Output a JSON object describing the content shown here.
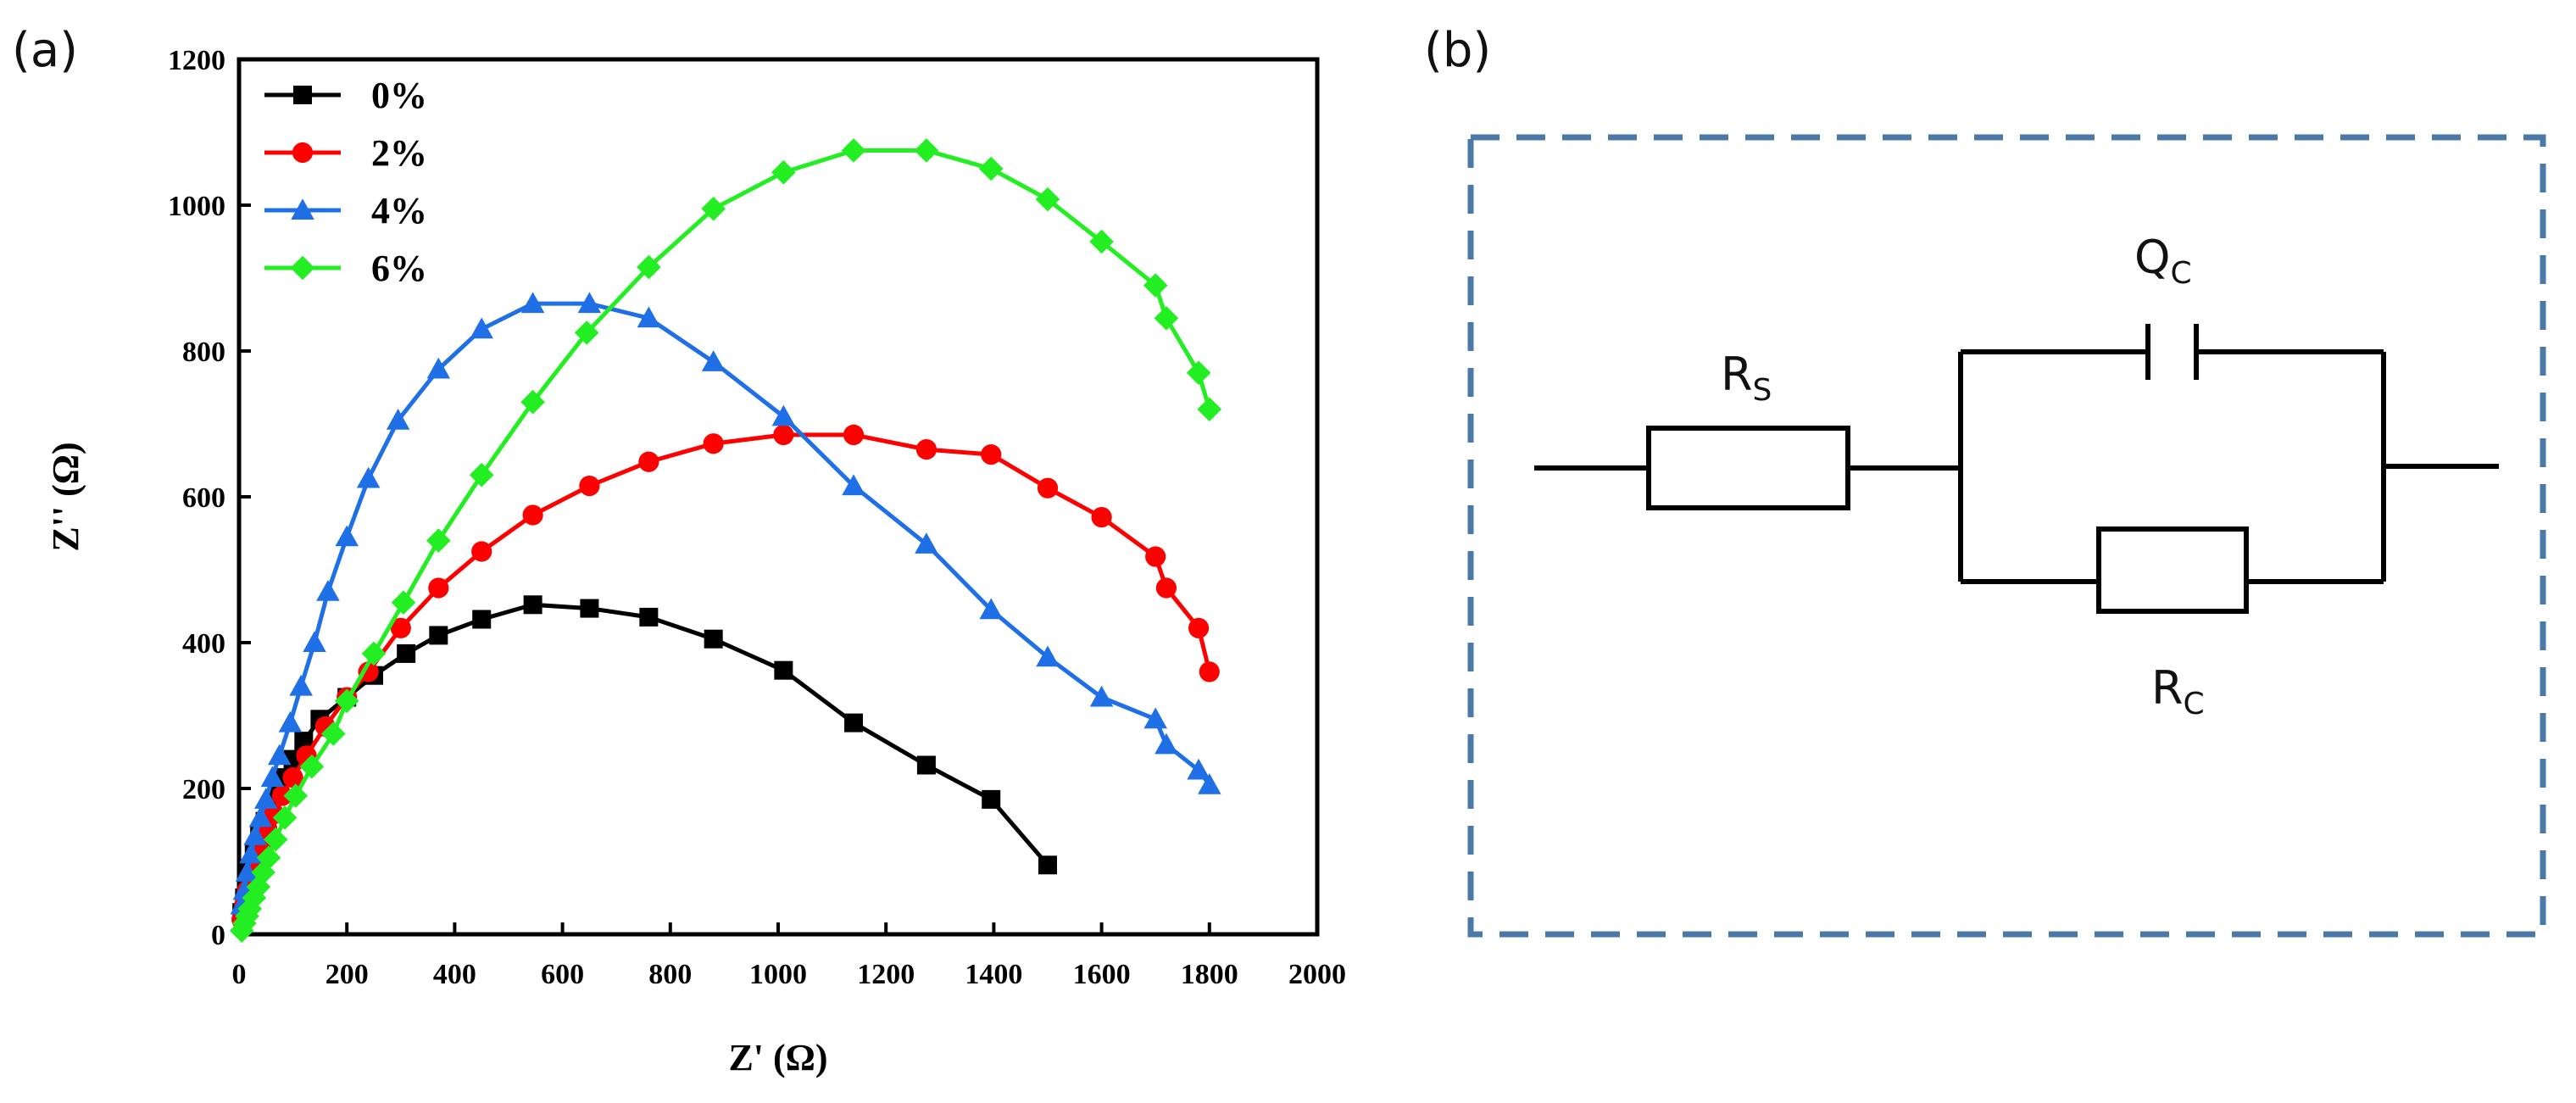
{
  "panels": {
    "a_label": "(a)",
    "b_label": "(b)"
  },
  "chart_data": {
    "type": "line",
    "title": "",
    "xlabel": "Z' (Ω)",
    "ylabel": "Z'' (Ω)",
    "xlim": [
      0,
      2000
    ],
    "ylim": [
      0,
      1200
    ],
    "xticks": [
      0,
      200,
      400,
      600,
      800,
      1000,
      1200,
      1400,
      1600,
      1800,
      2000
    ],
    "yticks": [
      0,
      200,
      400,
      600,
      800,
      1000,
      1200
    ],
    "grid": false,
    "legend_position": "top-left",
    "series": [
      {
        "name": "0%",
        "color": "#000000",
        "marker": "square",
        "points": [
          [
            5,
            30
          ],
          [
            10,
            50
          ],
          [
            15,
            70
          ],
          [
            20,
            90
          ],
          [
            28,
            110
          ],
          [
            38,
            135
          ],
          [
            48,
            155
          ],
          [
            60,
            175
          ],
          [
            72,
            195
          ],
          [
            85,
            215
          ],
          [
            100,
            240
          ],
          [
            120,
            265
          ],
          [
            150,
            295
          ],
          [
            200,
            325
          ],
          [
            250,
            355
          ],
          [
            310,
            385
          ],
          [
            370,
            410
          ],
          [
            450,
            432
          ],
          [
            545,
            452
          ],
          [
            650,
            447
          ],
          [
            760,
            435
          ],
          [
            880,
            405
          ],
          [
            1010,
            362
          ],
          [
            1140,
            290
          ],
          [
            1275,
            232
          ],
          [
            1395,
            185
          ],
          [
            1500,
            95
          ]
        ]
      },
      {
        "name": "2%",
        "color": "#ff0000",
        "marker": "circle",
        "points": [
          [
            5,
            20
          ],
          [
            10,
            40
          ],
          [
            15,
            60
          ],
          [
            22,
            80
          ],
          [
            30,
            100
          ],
          [
            40,
            120
          ],
          [
            52,
            145
          ],
          [
            65,
            165
          ],
          [
            80,
            190
          ],
          [
            100,
            215
          ],
          [
            125,
            245
          ],
          [
            160,
            285
          ],
          [
            200,
            325
          ],
          [
            240,
            360
          ],
          [
            300,
            420
          ],
          [
            370,
            475
          ],
          [
            450,
            525
          ],
          [
            545,
            575
          ],
          [
            650,
            615
          ],
          [
            760,
            648
          ],
          [
            880,
            673
          ],
          [
            1010,
            685
          ],
          [
            1140,
            685
          ],
          [
            1275,
            665
          ],
          [
            1395,
            658
          ],
          [
            1500,
            612
          ],
          [
            1600,
            572
          ],
          [
            1700,
            518
          ],
          [
            1720,
            475
          ],
          [
            1780,
            420
          ],
          [
            1800,
            360
          ]
        ]
      },
      {
        "name": "4%",
        "color": "#1f6fe6",
        "marker": "triangle",
        "points": [
          [
            5,
            40
          ],
          [
            10,
            60
          ],
          [
            15,
            85
          ],
          [
            22,
            110
          ],
          [
            30,
            135
          ],
          [
            40,
            160
          ],
          [
            50,
            185
          ],
          [
            62,
            215
          ],
          [
            75,
            245
          ],
          [
            95,
            290
          ],
          [
            115,
            340
          ],
          [
            140,
            400
          ],
          [
            165,
            470
          ],
          [
            200,
            545
          ],
          [
            240,
            625
          ],
          [
            295,
            705
          ],
          [
            370,
            775
          ],
          [
            450,
            830
          ],
          [
            545,
            865
          ],
          [
            650,
            865
          ],
          [
            760,
            845
          ],
          [
            880,
            785
          ],
          [
            1010,
            710
          ],
          [
            1140,
            615
          ],
          [
            1275,
            535
          ],
          [
            1395,
            445
          ],
          [
            1500,
            380
          ],
          [
            1600,
            325
          ],
          [
            1700,
            295
          ],
          [
            1720,
            260
          ],
          [
            1780,
            225
          ],
          [
            1800,
            205
          ]
        ]
      },
      {
        "name": "6%",
        "color": "#22ee22",
        "marker": "diamond",
        "points": [
          [
            5,
            5
          ],
          [
            10,
            15
          ],
          [
            15,
            25
          ],
          [
            20,
            35
          ],
          [
            28,
            50
          ],
          [
            36,
            65
          ],
          [
            45,
            85
          ],
          [
            55,
            105
          ],
          [
            68,
            130
          ],
          [
            85,
            160
          ],
          [
            105,
            190
          ],
          [
            135,
            230
          ],
          [
            175,
            275
          ],
          [
            200,
            320
          ],
          [
            250,
            385
          ],
          [
            305,
            455
          ],
          [
            370,
            540
          ],
          [
            450,
            630
          ],
          [
            545,
            730
          ],
          [
            645,
            825
          ],
          [
            760,
            915
          ],
          [
            880,
            995
          ],
          [
            1010,
            1045
          ],
          [
            1140,
            1075
          ],
          [
            1275,
            1075
          ],
          [
            1395,
            1050
          ],
          [
            1500,
            1008
          ],
          [
            1600,
            950
          ],
          [
            1700,
            890
          ],
          [
            1720,
            845
          ],
          [
            1780,
            770
          ],
          [
            1800,
            720
          ]
        ]
      }
    ]
  },
  "circuit": {
    "rs_main": "R",
    "rs_sub": "S",
    "qc_main": "Q",
    "qc_sub": "C",
    "rc_main": "R",
    "rc_sub": "C"
  },
  "colors": {
    "border": "#4a78a8",
    "line": "#000000"
  }
}
